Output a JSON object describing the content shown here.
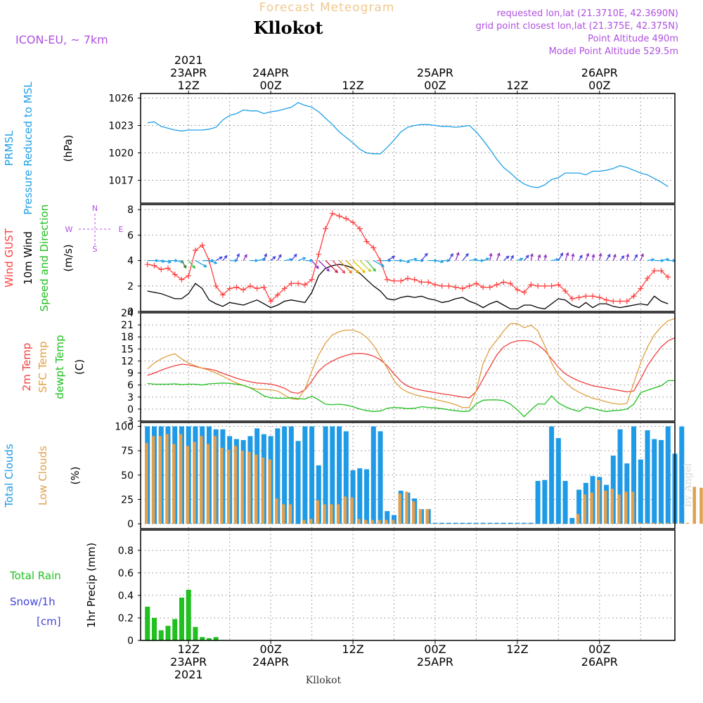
{
  "header": {
    "product": "Forecast Meteogram",
    "location": "Kllokot",
    "model": "ICON-EU, ~ 7km",
    "requested": "requested lon,lat (21.3710E, 42.3690N)",
    "grid_point": "grid point closest lon,lat (21.375E, 42.375N)",
    "point_altitude": "Point Altitude 490m",
    "model_altitude": "Model Point Altitude 529.5m"
  },
  "footer": {
    "location": "Kllokot",
    "credit": "by Angel"
  },
  "time_axis": {
    "top_labels": [
      {
        "h": 12,
        "lines": [
          "2021",
          "23APR",
          "12Z"
        ]
      },
      {
        "h": 24,
        "lines": [
          "24APR",
          "00Z"
        ]
      },
      {
        "h": 36,
        "lines": [
          "12Z"
        ]
      },
      {
        "h": 48,
        "lines": [
          "25APR",
          "00Z"
        ]
      },
      {
        "h": 60,
        "lines": [
          "12Z"
        ]
      },
      {
        "h": 72,
        "lines": [
          "26APR",
          "00Z"
        ]
      }
    ],
    "bottom_labels": [
      {
        "h": 12,
        "lines": [
          "12Z",
          "23APR",
          "2021"
        ]
      },
      {
        "h": 24,
        "lines": [
          "00Z",
          "24APR"
        ]
      },
      {
        "h": 36,
        "lines": [
          "12Z"
        ]
      },
      {
        "h": 48,
        "lines": [
          "00Z",
          "25APR"
        ]
      },
      {
        "h": 60,
        "lines": [
          "12Z"
        ]
      },
      {
        "h": 72,
        "lines": [
          "00Z",
          "26APR"
        ]
      }
    ]
  },
  "chart_data": [
    {
      "type": "line",
      "ylabel_lines": [
        "PRMSL",
        "Pressure Reduced to MSL"
      ],
      "unit": "(hPa)",
      "ylim": [
        1014.5,
        1026.5
      ],
      "yticks": [
        1017,
        1020,
        1023,
        1026
      ],
      "grid": true,
      "x_start_hour": 6,
      "x_step_hours": 1,
      "series": [
        {
          "color": "#1ea0e6",
          "values": [
            1023.3,
            1023.4,
            1022.9,
            1022.7,
            1022.5,
            1022.4,
            1022.5,
            1022.5,
            1022.5,
            1022.6,
            1022.8,
            1023.6,
            1024.1,
            1024.3,
            1024.7,
            1024.6,
            1024.6,
            1024.3,
            1024.5,
            1024.6,
            1024.8,
            1025.0,
            1025.5,
            1025.2,
            1025.0,
            1024.5,
            1023.8,
            1023.1,
            1022.3,
            1021.7,
            1021.1,
            1020.4,
            1020.0,
            1019.9,
            1019.9,
            1020.6,
            1021.4,
            1022.3,
            1022.8,
            1023.0,
            1023.1,
            1023.1,
            1023.0,
            1022.9,
            1022.9,
            1022.8,
            1022.9,
            1023.0,
            1022.3,
            1021.4,
            1020.4,
            1019.3,
            1018.4,
            1017.8,
            1017.1,
            1016.6,
            1016.3,
            1016.2,
            1016.5,
            1017.1,
            1017.3,
            1017.8,
            1017.8,
            1017.8,
            1017.6,
            1018.0,
            1018.0,
            1018.1,
            1018.3,
            1018.6,
            1018.4,
            1018.1,
            1017.8,
            1017.6,
            1017.2,
            1016.8,
            1016.3
          ]
        }
      ]
    },
    {
      "type": "line",
      "ylabel_lines": [
        "Wind GUST",
        "10m Wind",
        "Speed and Direction"
      ],
      "unit": "(m/s)",
      "compass": {
        "n": "N",
        "s": "S",
        "e": "E",
        "w": "W"
      },
      "ylim": [
        0,
        8.4
      ],
      "yticks": [
        0,
        2,
        4,
        6,
        8
      ],
      "grid": true,
      "x_start_hour": 6,
      "x_step_hours": 1,
      "series": [
        {
          "color": "#ff4040",
          "marker": "plus",
          "values": [
            3.7,
            3.6,
            3.3,
            3.4,
            2.9,
            2.5,
            2.8,
            4.8,
            5.2,
            4.0,
            2.0,
            1.3,
            1.8,
            1.9,
            1.7,
            2.0,
            1.8,
            1.9,
            0.8,
            1.3,
            1.8,
            2.2,
            2.2,
            2.1,
            2.5,
            4.5,
            6.5,
            7.7,
            7.5,
            7.3,
            7.0,
            6.5,
            5.5,
            5.0,
            4.0,
            2.5,
            2.4,
            2.4,
            2.6,
            2.5,
            2.3,
            2.3,
            2.1,
            2.0,
            2.0,
            1.9,
            1.8,
            2.0,
            2.2,
            1.9,
            1.9,
            2.1,
            2.3,
            2.2,
            1.7,
            1.5,
            2.1,
            2.0,
            2.0,
            2.0,
            2.1,
            1.6,
            1.0,
            1.1,
            1.2,
            1.2,
            1.1,
            0.9,
            0.8,
            0.8,
            0.8,
            1.2,
            1.8,
            2.6,
            3.2,
            3.2,
            2.7
          ]
        },
        {
          "color": "#000000",
          "values": [
            1.6,
            1.5,
            1.4,
            1.2,
            1.0,
            1.0,
            1.4,
            2.2,
            1.8,
            0.9,
            0.6,
            0.4,
            0.7,
            0.6,
            0.5,
            0.7,
            0.9,
            0.6,
            0.3,
            0.5,
            0.8,
            0.9,
            0.8,
            0.7,
            1.5,
            2.8,
            3.4,
            3.6,
            3.7,
            3.6,
            3.4,
            3.0,
            2.5,
            2.0,
            1.6,
            1.0,
            0.9,
            1.1,
            1.2,
            1.1,
            1.2,
            1.0,
            0.9,
            0.7,
            0.8,
            1.0,
            1.1,
            0.8,
            0.6,
            0.3,
            0.6,
            0.8,
            0.5,
            0.2,
            0.2,
            0.5,
            0.5,
            0.3,
            0.2,
            0.6,
            1.0,
            0.9,
            0.5,
            0.3,
            0.7,
            0.3,
            0.6,
            0.6,
            0.4,
            0.3,
            0.4,
            0.5,
            0.6,
            0.5,
            1.2,
            0.8,
            0.6
          ]
        }
      ],
      "wind_barbs": {
        "colors": [
          "#1ea0e6",
          "#1ea0e6",
          "#1ea0e6",
          "#1ea0e6",
          "#1ea0e6",
          "#3a7a20",
          "#40c040",
          "#1ea0e6",
          "#1ea0e6",
          "#1ea0e6",
          "#4444dd",
          "#4444dd",
          "#1ea0e6",
          "#4444dd",
          "#9030c0",
          "#1ea0e6",
          "#1ea0e6",
          "#4444dd",
          "#4444dd",
          "#4444dd",
          "#1ea0e6",
          "#4444dd",
          "#1ea0e6",
          "#1ea0e6",
          "#9030c0",
          "#9030c0",
          "#c02050",
          "#e04060",
          "#e08020",
          "#e0a000",
          "#e0c000",
          "#c0d040",
          "#40c040",
          "#1ea0e6",
          "#1ea0e6",
          "#4444dd",
          "#1ea0e6",
          "#1ea0e6",
          "#1ea0e6",
          "#1ea0e6",
          "#4444dd",
          "#1ea0e6",
          "#1ea0e6",
          "#1ea0e6",
          "#4444dd",
          "#9030c0",
          "#4444dd",
          "#1ea0e6",
          "#1ea0e6",
          "#1ea0e6",
          "#9030c0",
          "#9030c0",
          "#4444dd",
          "#4444dd",
          "#1ea0e6",
          "#4444dd",
          "#9030c0",
          "#9030c0",
          "#9030c0",
          "#1ea0e6",
          "#4444dd",
          "#9030c0",
          "#9030c0",
          "#4444dd",
          "#9030c0",
          "#9030c0",
          "#9030c0",
          "#4444dd",
          "#9030c0",
          "#4444dd",
          "#9030c0",
          "#4444dd",
          "#9030c0",
          "#1ea0e6",
          "#1ea0e6",
          "#1ea0e6",
          "#1ea0e6"
        ],
        "dir_deg": [
          90,
          85,
          80,
          90,
          80,
          30,
          40,
          60,
          90,
          70,
          120,
          140,
          90,
          160,
          150,
          90,
          100,
          160,
          130,
          150,
          100,
          140,
          110,
          90,
          40,
          45,
          45,
          45,
          45,
          45,
          45,
          45,
          40,
          60,
          90,
          120,
          90,
          80,
          100,
          90,
          140,
          90,
          80,
          90,
          150,
          160,
          140,
          100,
          90,
          110,
          170,
          160,
          130,
          150,
          110,
          140,
          170,
          160,
          170,
          100,
          150,
          160,
          170,
          150,
          160,
          170,
          170,
          150,
          160,
          140,
          170,
          150,
          160,
          100,
          90,
          100,
          90
        ]
      }
    },
    {
      "type": "line",
      "ylabel_lines": [
        "2m Temp",
        "SFC Temp",
        "dewpt Temp"
      ],
      "unit": "(C)",
      "ylim": [
        -3,
        24
      ],
      "yticks": [
        -3,
        0,
        3,
        6,
        9,
        12,
        15,
        18,
        21,
        24
      ],
      "grid": true,
      "x_start_hour": 6,
      "x_step_hours": 1,
      "series": [
        {
          "name": "2m Temp",
          "color": "#f04040",
          "values": [
            8.4,
            9.0,
            9.7,
            10.3,
            10.8,
            11.2,
            11.0,
            10.6,
            10.2,
            10.0,
            9.6,
            8.9,
            8.3,
            7.7,
            7.2,
            6.8,
            6.5,
            6.4,
            6.2,
            5.8,
            5.2,
            4.2,
            3.9,
            4.8,
            7.0,
            9.5,
            11.0,
            12.0,
            12.8,
            13.4,
            13.8,
            13.9,
            13.7,
            13.2,
            12.3,
            10.8,
            8.8,
            6.9,
            5.7,
            5.1,
            4.7,
            4.4,
            4.1,
            3.8,
            3.6,
            3.3,
            3.0,
            2.8,
            4.4,
            7.5,
            10.5,
            13.5,
            15.5,
            16.5,
            17.0,
            17.1,
            16.9,
            16.0,
            14.6,
            12.5,
            10.4,
            8.8,
            7.8,
            7.0,
            6.4,
            5.8,
            5.5,
            5.2,
            4.9,
            4.6,
            4.3,
            4.5,
            7.5,
            10.8,
            13.3,
            15.5,
            17.0,
            17.8
          ]
        },
        {
          "name": "SFC Temp",
          "color": "#e0a040",
          "values": [
            10.0,
            11.5,
            12.5,
            13.3,
            13.8,
            12.5,
            11.5,
            10.8,
            10.2,
            9.7,
            9.0,
            8.2,
            7.3,
            6.5,
            5.9,
            5.3,
            5.0,
            4.9,
            4.8,
            4.5,
            3.5,
            2.6,
            2.4,
            5.0,
            9.5,
            13.5,
            16.5,
            18.5,
            19.3,
            19.7,
            19.7,
            19.1,
            17.9,
            15.9,
            13.1,
            10.2,
            7.1,
            5.2,
            4.2,
            3.6,
            3.2,
            2.8,
            2.4,
            2.0,
            1.6,
            1.1,
            0.4,
            0.4,
            4.6,
            11.4,
            15.0,
            17.2,
            19.5,
            21.3,
            21.3,
            20.3,
            20.9,
            19.5,
            15.8,
            11.5,
            8.4,
            6.7,
            5.2,
            4.2,
            3.4,
            2.7,
            2.3,
            1.8,
            1.4,
            1.2,
            1.4,
            6.5,
            11.5,
            15.5,
            18.5,
            20.5,
            22.0,
            22.6
          ]
        },
        {
          "name": "dewpt Temp",
          "color": "#20c020",
          "values": [
            6.4,
            6.2,
            6.2,
            6.2,
            6.3,
            6.1,
            6.2,
            6.2,
            6.0,
            6.3,
            6.4,
            6.5,
            6.4,
            6.2,
            5.9,
            5.3,
            4.4,
            3.3,
            2.8,
            2.7,
            2.7,
            2.8,
            2.6,
            2.5,
            3.2,
            2.3,
            1.2,
            1.1,
            1.2,
            1.0,
            0.6,
            0.0,
            -0.4,
            -0.6,
            -0.5,
            0.2,
            0.4,
            0.3,
            0.1,
            0.2,
            0.6,
            0.4,
            0.3,
            0.1,
            -0.2,
            -0.4,
            -0.6,
            -0.5,
            1.3,
            2.2,
            2.3,
            2.3,
            2.1,
            1.2,
            -0.2,
            -1.9,
            -0.2,
            1.3,
            1.2,
            3.3,
            1.5,
            0.6,
            -0.1,
            -0.6,
            0.5,
            0.2,
            -0.3,
            -0.6,
            -0.4,
            -0.3,
            0.0,
            1.2,
            4.1,
            4.7,
            5.3,
            5.8,
            7.1,
            7.1
          ]
        }
      ]
    },
    {
      "type": "bar",
      "ylabel_lines": [
        "Total Clouds",
        "Low Clouds"
      ],
      "unit": "(%)",
      "ylim": [
        -5,
        104
      ],
      "yticks": [
        0,
        25,
        50,
        75,
        100
      ],
      "grid": true,
      "x_start_hour": 6,
      "x_step_hours": 1,
      "series": [
        {
          "name": "Total Clouds",
          "color": "#1e9ae6",
          "values": [
            100,
            100,
            100,
            100,
            100,
            100,
            100,
            100,
            100,
            100,
            97,
            97,
            90,
            87,
            86,
            90,
            98,
            92,
            90,
            98,
            100,
            100,
            85,
            100,
            100,
            60,
            100,
            100,
            100,
            95,
            55,
            57,
            56,
            100,
            95,
            13,
            9,
            34,
            32,
            26,
            15,
            15,
            1,
            1,
            1,
            1,
            1,
            1,
            1,
            1,
            1,
            1,
            1,
            1,
            1,
            1,
            1,
            44,
            45,
            100,
            88,
            44,
            6,
            35,
            42,
            49,
            48,
            40,
            70,
            97,
            62,
            100,
            66,
            96,
            87,
            86,
            100,
            72,
            100
          ]
        },
        {
          "name": "Low Clouds",
          "color": "#e0a050",
          "values": [
            83,
            90,
            90,
            92,
            82,
            92,
            80,
            84,
            90,
            82,
            90,
            78,
            76,
            80,
            75,
            74,
            71,
            68,
            66,
            26,
            20,
            20,
            0,
            4,
            5,
            24,
            20,
            20,
            20,
            28,
            27,
            5,
            4,
            4,
            4,
            4,
            4,
            31,
            33,
            23,
            15,
            15,
            0,
            0,
            0,
            0,
            0,
            0,
            0,
            0,
            0,
            0,
            0,
            0,
            0,
            0,
            0,
            0,
            0,
            0,
            0,
            0,
            0,
            10,
            30,
            32,
            45,
            34,
            36,
            30,
            33,
            33,
            1,
            1,
            1,
            1,
            1,
            1,
            1,
            1,
            38,
            37
          ]
        }
      ]
    },
    {
      "type": "bar",
      "ylabel_lines": [
        "1hr Precip (mm)"
      ],
      "legend_lines": [
        {
          "text": "Total  Rain",
          "color": "#20c020"
        },
        {
          "text": "Snow/1h",
          "color": "#4444dd"
        },
        {
          "text": "[cm]",
          "color": "#4444dd"
        }
      ],
      "ylim": [
        0,
        0.98
      ],
      "yticks": [
        0,
        0.2,
        0.4,
        0.6,
        0.8
      ],
      "grid": true,
      "x_start_hour": 6,
      "x_step_hours": 1,
      "series": [
        {
          "name": "Total Rain",
          "color": "#20c020",
          "values": [
            0.3,
            0.2,
            0.09,
            0.13,
            0.19,
            0.38,
            0.45,
            0.12,
            0.03,
            0.02,
            0.03
          ]
        }
      ]
    }
  ]
}
